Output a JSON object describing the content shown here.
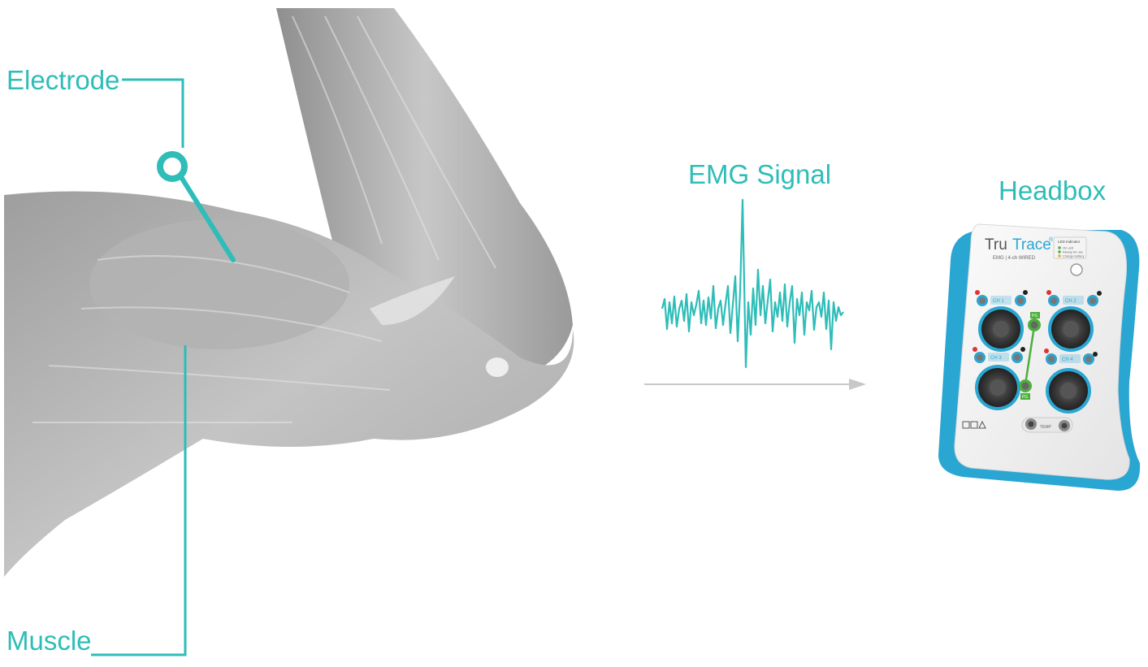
{
  "labels": {
    "electrode": "Electrode",
    "muscle": "Muscle",
    "emg_signal": "EMG Signal",
    "headbox": "Headbox"
  },
  "device": {
    "brand_prefix": "Tru",
    "brand_suffix": "Trace",
    "brand_mark": "®",
    "subtitle": "EMG | 4-ch WIRED",
    "led_title": "LED Indicator",
    "led_items": [
      "On unit",
      "Ready for use",
      "Charge battery"
    ],
    "ch1": "CH 1",
    "ch2": "CH 2",
    "ch3": "CH 3",
    "ch4": "CH 4",
    "pg": "PG",
    "temp": "TEMP"
  },
  "colors": {
    "accent": "#2ebdb8",
    "arm": "#b9b9b9",
    "arrow": "#c8c8c8",
    "device_trim": "#2aa6d2",
    "pg_green": "#4caf3c"
  },
  "icons": [
    "electrode-icon",
    "emg-waveform-icon",
    "arrow-right-icon",
    "arm-illustration",
    "headbox-device"
  ]
}
